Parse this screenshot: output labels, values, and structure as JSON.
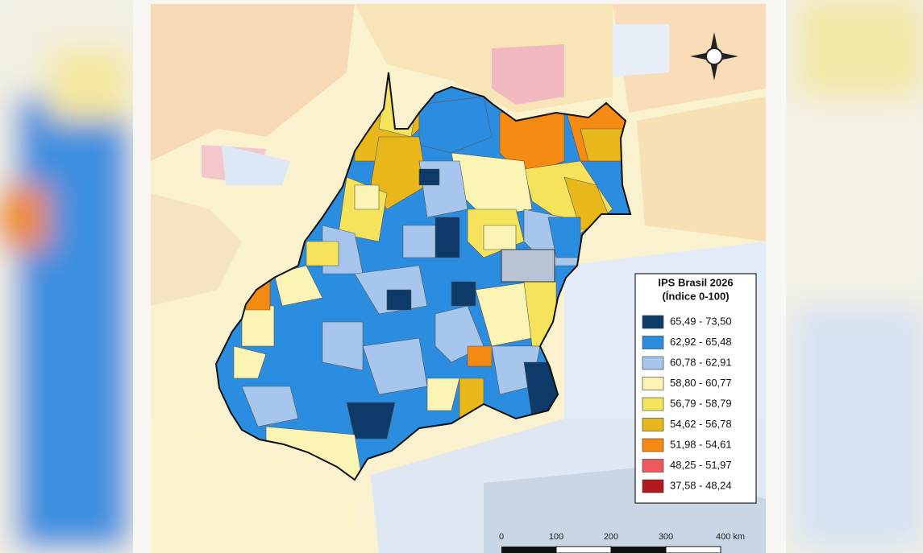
{
  "legend": {
    "title": "IPS Brasil 2026",
    "subtitle": "(Índice 0-100)",
    "items": [
      {
        "label": "65,49 - 73,50",
        "color": "#0d3a68"
      },
      {
        "label": "62,92 - 65,48",
        "color": "#2b8de0"
      },
      {
        "label": "60,78 - 62,91",
        "color": "#a6c6ee"
      },
      {
        "label": "58,80 - 60,77",
        "color": "#fbf4b4"
      },
      {
        "label": "56,79 - 58,79",
        "color": "#f5e35c"
      },
      {
        "label": "54,62 - 56,78",
        "color": "#e8b71a"
      },
      {
        "label": "51,98 - 54,61",
        "color": "#f58a12"
      },
      {
        "label": "48,25 - 51,97",
        "color": "#ec5a5e"
      },
      {
        "label": "37,58 - 48,24",
        "color": "#b01a1e"
      }
    ]
  },
  "scale_bar": {
    "labels": [
      "0",
      "100",
      "200",
      "300",
      "400 km"
    ]
  }
}
